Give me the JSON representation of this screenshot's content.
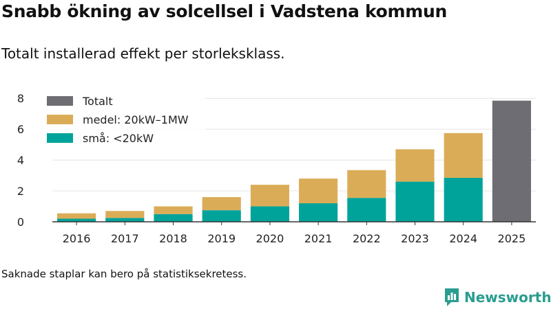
{
  "title": "Snabb ökning av solcellsel i Vadstena kommun",
  "subtitle": "Totalt installerad effekt per storleksklass.",
  "note": "Saknade staplar kan bero på statistiksekretess.",
  "brand": {
    "name": "Newsworthy",
    "color": "#2a9d8f"
  },
  "chart_data": {
    "type": "bar",
    "stacked": true,
    "categories": [
      "2016",
      "2017",
      "2018",
      "2019",
      "2020",
      "2021",
      "2022",
      "2023",
      "2024",
      "2025"
    ],
    "series": [
      {
        "name": "små: <20kW",
        "color": "#00a39a",
        "values": [
          0.2,
          0.25,
          0.5,
          0.75,
          1.0,
          1.2,
          1.55,
          2.6,
          2.85,
          null
        ]
      },
      {
        "name": "medel: 20kW–1MW",
        "color": "#dbac58",
        "values": [
          0.35,
          0.45,
          0.5,
          0.85,
          1.4,
          1.6,
          1.8,
          2.1,
          2.9,
          null
        ]
      },
      {
        "name": "Totalt",
        "color": "#6d6d73",
        "values": [
          null,
          null,
          null,
          null,
          null,
          null,
          null,
          null,
          null,
          7.85
        ]
      }
    ],
    "legend_order": [
      "Totalt",
      "medel: 20kW–1MW",
      "små: <20kW"
    ],
    "legend_position": "top-left",
    "ylim": [
      0,
      8.5
    ],
    "yticks": [
      0,
      2,
      4,
      6,
      8
    ],
    "xlabel": "",
    "ylabel": "",
    "grid": true
  }
}
